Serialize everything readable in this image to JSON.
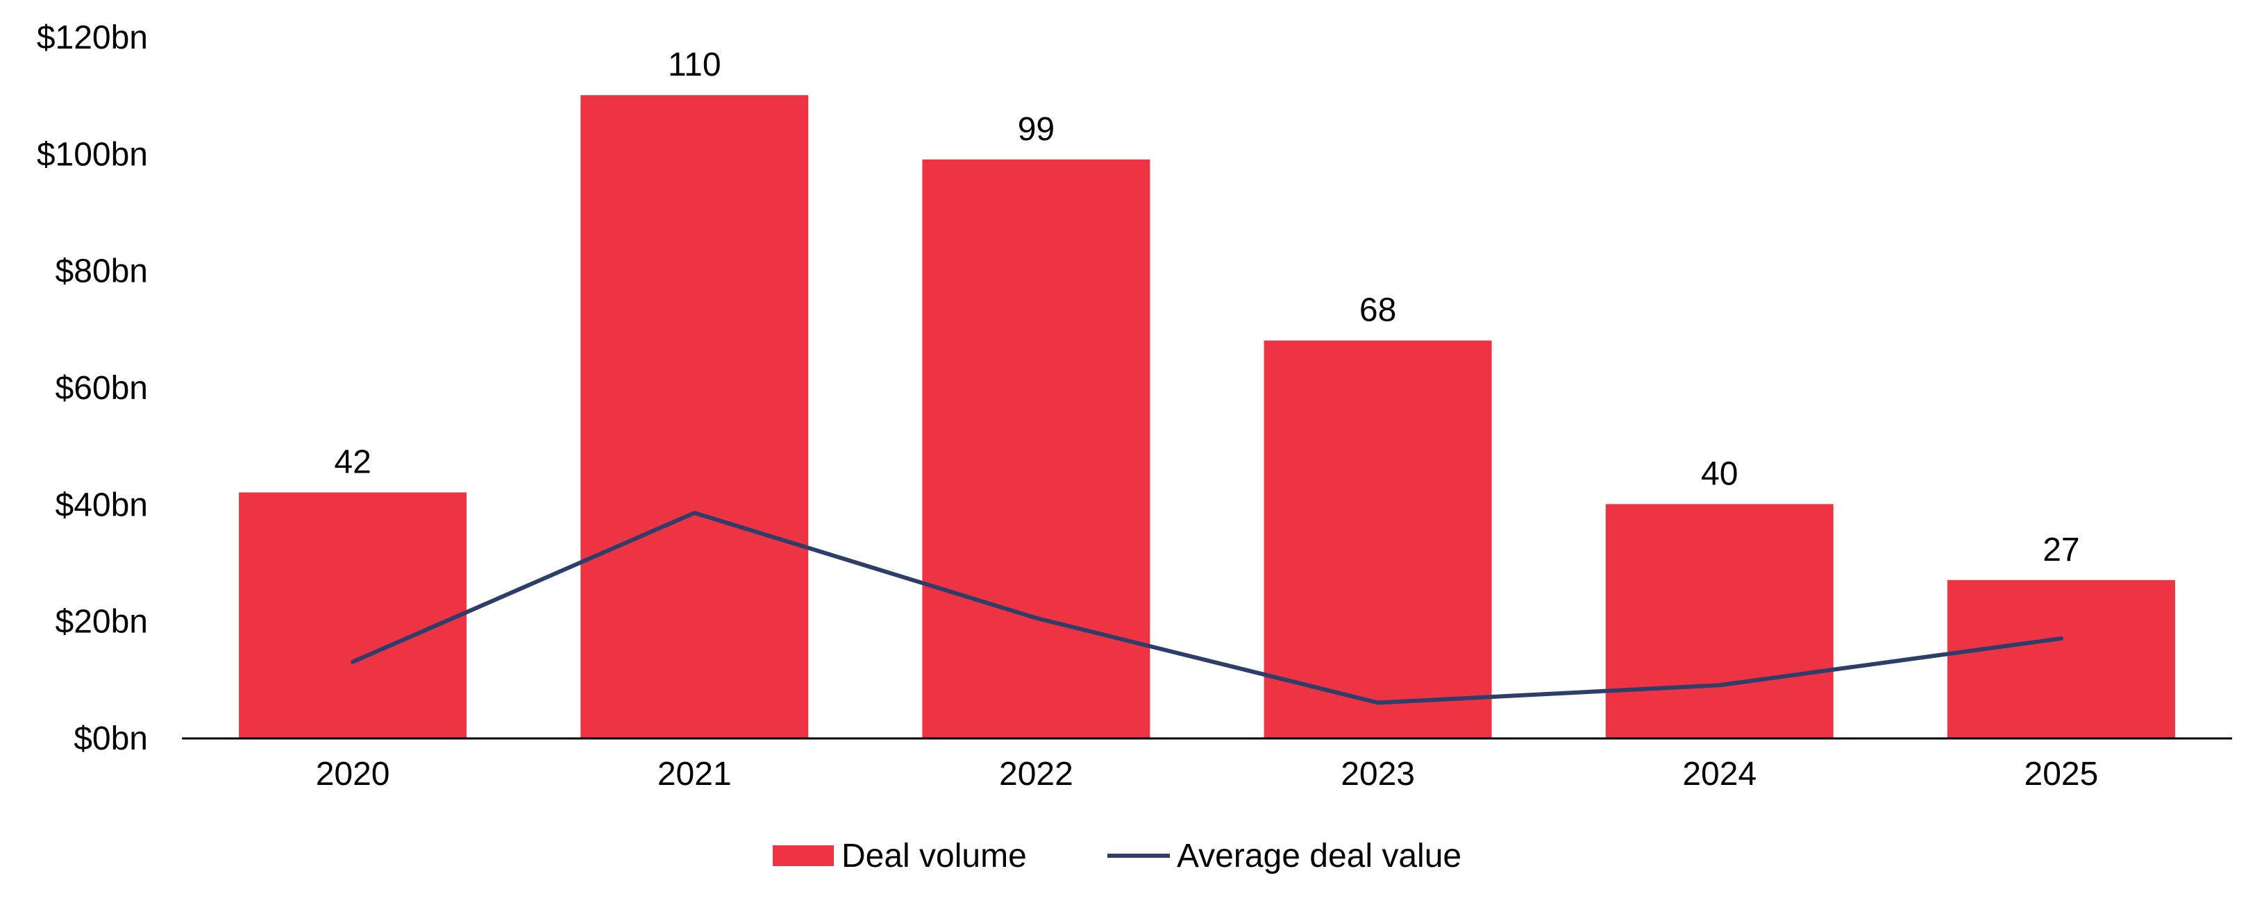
{
  "chart_data": {
    "type": "bar",
    "title": "",
    "xlabel": "",
    "ylabel": "",
    "categories": [
      "2020",
      "2021",
      "2022",
      "2023",
      "2024",
      "2025"
    ],
    "ylim": [
      0,
      120
    ],
    "yticks": [
      0,
      20,
      40,
      60,
      80,
      100,
      120
    ],
    "ytick_labels": [
      "$0bn",
      "$20bn",
      "$40bn",
      "$60bn",
      "$80bn",
      "$100bn",
      "$120bn"
    ],
    "grid": false,
    "legend_position": "bottom-center",
    "series": [
      {
        "name": "Deal volume",
        "type": "bar",
        "color": "#EE3342",
        "values": [
          42,
          110,
          99,
          68,
          40,
          27
        ],
        "data_labels": [
          "42",
          "110",
          "99",
          "68",
          "40",
          "27"
        ]
      },
      {
        "name": "Average deal value",
        "type": "line",
        "color": "#2E3E6B",
        "values": [
          13,
          38.5,
          20.5,
          6,
          9,
          17
        ]
      }
    ]
  }
}
